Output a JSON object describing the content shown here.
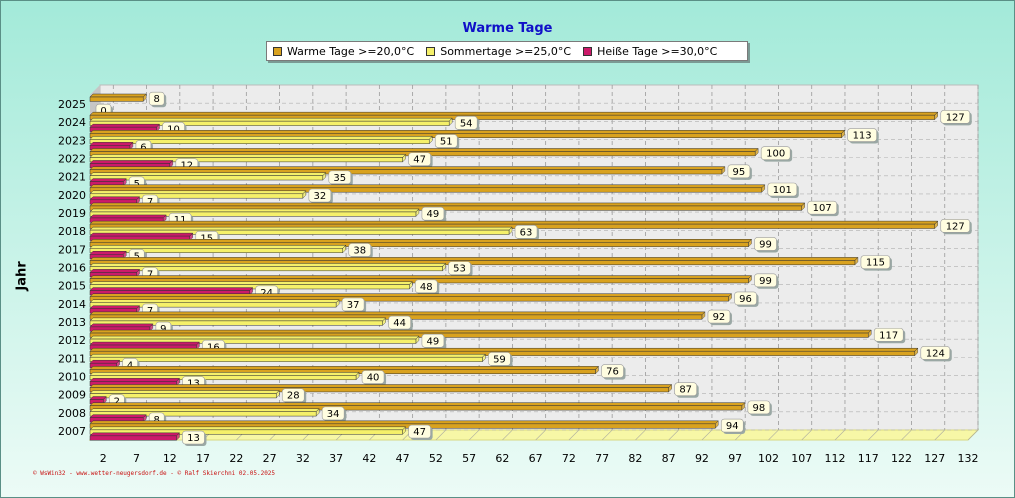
{
  "chart_data": {
    "type": "bar",
    "orientation": "horizontal",
    "title": "Warme Tage",
    "ylabel": "Jahr",
    "xlabel": "",
    "xlim": [
      0,
      132
    ],
    "xticks": [
      2,
      7,
      12,
      17,
      22,
      27,
      32,
      37,
      42,
      47,
      52,
      57,
      62,
      67,
      72,
      77,
      82,
      87,
      92,
      97,
      102,
      107,
      112,
      117,
      122,
      127,
      132
    ],
    "grid": true,
    "legend_position": "top",
    "categories": [
      "2025",
      "2024",
      "2023",
      "2022",
      "2021",
      "2020",
      "2019",
      "2018",
      "2017",
      "2016",
      "2015",
      "2014",
      "2013",
      "2012",
      "2011",
      "2010",
      "2009",
      "2008",
      "2007"
    ],
    "series": [
      {
        "name": "Warme Tage >=20,0°C",
        "color": "#d9a21f",
        "values": [
          8,
          127,
          113,
          100,
          95,
          101,
          107,
          127,
          99,
          115,
          99,
          96,
          92,
          117,
          124,
          76,
          87,
          98,
          94
        ]
      },
      {
        "name": "Sommertage >=25,0°C",
        "color": "#f5f06a",
        "values": [
          null,
          54,
          51,
          47,
          35,
          32,
          49,
          63,
          38,
          53,
          48,
          37,
          44,
          49,
          59,
          40,
          28,
          34,
          47
        ]
      },
      {
        "name": "Heiße Tage >=30,0°C",
        "color": "#cc1a6a",
        "values": [
          0,
          10,
          6,
          12,
          5,
          7,
          11,
          15,
          5,
          7,
          24,
          7,
          9,
          16,
          4,
          13,
          2,
          8,
          13
        ]
      }
    ]
  },
  "footer": "© WsWin32 - www.wetter-neugersdorf.de - © Ralf Skierchni  02.05.2025"
}
